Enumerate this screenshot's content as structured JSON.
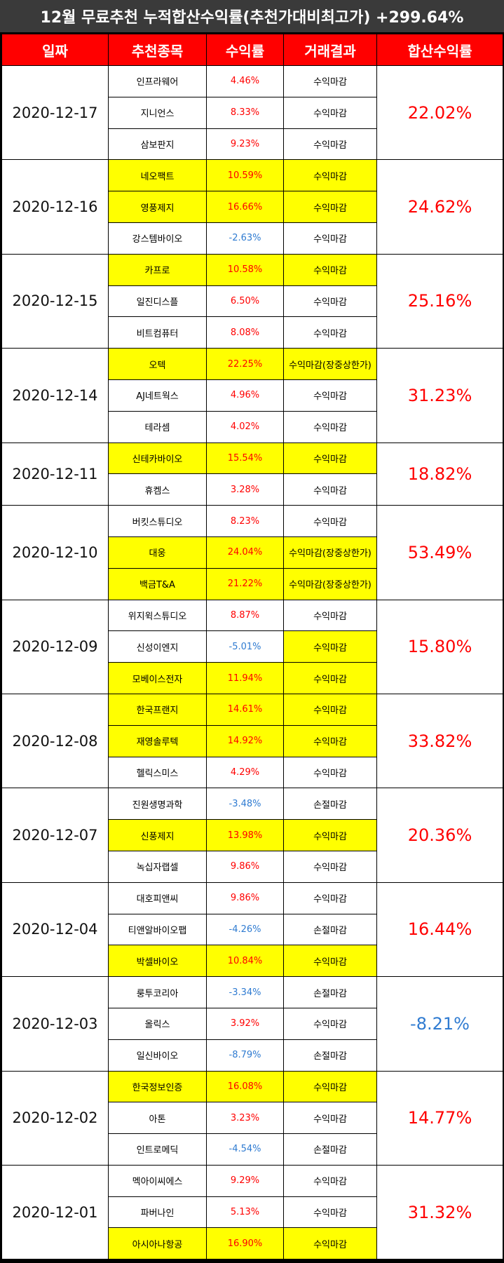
{
  "title": "12월 무료추천 누적합산수익률(추천가대비최고가) +299.64%",
  "headers": [
    "일짜",
    "추천종목",
    "수익률",
    "거래결과",
    "합산수익률"
  ],
  "colors": {
    "header_bg": "#ff0000",
    "title_bg": "#3a3a3a",
    "highlight": "#ffff00",
    "positive": "#ff0000",
    "negative": "#2f7bd1"
  },
  "groups": [
    {
      "date": "2020-12-17",
      "total": "22.02%",
      "total_sign": "pos",
      "rows": [
        {
          "name": "인프라웨어",
          "ret": "4.46%",
          "sign": "pos",
          "result": "수익마감",
          "hl": false,
          "limit": false
        },
        {
          "name": "지니언스",
          "ret": "8.33%",
          "sign": "pos",
          "result": "수익마감",
          "hl": false,
          "limit": false
        },
        {
          "name": "삼보판지",
          "ret": "9.23%",
          "sign": "pos",
          "result": "수익마감",
          "hl": false,
          "limit": false
        }
      ]
    },
    {
      "date": "2020-12-16",
      "total": "24.62%",
      "total_sign": "pos",
      "rows": [
        {
          "name": "네오팩트",
          "ret": "10.59%",
          "sign": "pos",
          "result": "수익마감",
          "hl": true,
          "limit": false
        },
        {
          "name": "영풍제지",
          "ret": "16.66%",
          "sign": "pos",
          "result": "수익마감",
          "hl": true,
          "limit": false
        },
        {
          "name": "강스템바이오",
          "ret": "-2.63%",
          "sign": "neg",
          "result": "수익마감",
          "hl": false,
          "limit": false
        }
      ]
    },
    {
      "date": "2020-12-15",
      "total": "25.16%",
      "total_sign": "pos",
      "rows": [
        {
          "name": "카프로",
          "ret": "10.58%",
          "sign": "pos",
          "result": "수익마감",
          "hl": true,
          "limit": false
        },
        {
          "name": "일진디스플",
          "ret": "6.50%",
          "sign": "pos",
          "result": "수익마감",
          "hl": false,
          "limit": false
        },
        {
          "name": "비트컴퓨터",
          "ret": "8.08%",
          "sign": "pos",
          "result": "수익마감",
          "hl": false,
          "limit": false
        }
      ]
    },
    {
      "date": "2020-12-14",
      "total": "31.23%",
      "total_sign": "pos",
      "rows": [
        {
          "name": "오텍",
          "ret": "22.25%",
          "sign": "pos",
          "result": "수익마감(장중상한가)",
          "hl": true,
          "limit": true
        },
        {
          "name": "AJ네트웍스",
          "ret": "4.96%",
          "sign": "pos",
          "result": "수익마감",
          "hl": false,
          "limit": false
        },
        {
          "name": "테라셈",
          "ret": "4.02%",
          "sign": "pos",
          "result": "수익마감",
          "hl": false,
          "limit": false
        }
      ]
    },
    {
      "date": "2020-12-11",
      "total": "18.82%",
      "total_sign": "pos",
      "rows": [
        {
          "name": "신테카바이오",
          "ret": "15.54%",
          "sign": "pos",
          "result": "수익마감",
          "hl": true,
          "limit": false
        },
        {
          "name": "휴켐스",
          "ret": "3.28%",
          "sign": "pos",
          "result": "수익마감",
          "hl": false,
          "limit": false
        }
      ]
    },
    {
      "date": "2020-12-10",
      "total": "53.49%",
      "total_sign": "pos",
      "rows": [
        {
          "name": "버킷스튜디오",
          "ret": "8.23%",
          "sign": "pos",
          "result": "수익마감",
          "hl": false,
          "limit": false
        },
        {
          "name": "대웅",
          "ret": "24.04%",
          "sign": "pos",
          "result": "수익마감(장중상한가)",
          "hl": true,
          "limit": true
        },
        {
          "name": "백금T&A",
          "ret": "21.22%",
          "sign": "pos",
          "result": "수익마감(장중상한가)",
          "hl": true,
          "limit": true
        }
      ]
    },
    {
      "date": "2020-12-09",
      "total": "15.80%",
      "total_sign": "pos",
      "rows": [
        {
          "name": "위지윅스튜디오",
          "ret": "8.87%",
          "sign": "pos",
          "result": "수익마감",
          "hl": false,
          "limit": false
        },
        {
          "name": "신성이엔지",
          "ret": "-5.01%",
          "sign": "neg",
          "result": "수익마감",
          "hl": false,
          "res_hl": true,
          "limit": false
        },
        {
          "name": "모베이스전자",
          "ret": "11.94%",
          "sign": "pos",
          "result": "수익마감",
          "hl": true,
          "limit": false
        }
      ]
    },
    {
      "date": "2020-12-08",
      "total": "33.82%",
      "total_sign": "pos",
      "rows": [
        {
          "name": "한국프랜지",
          "ret": "14.61%",
          "sign": "pos",
          "result": "수익마감",
          "hl": true,
          "limit": false
        },
        {
          "name": "재영솔루텍",
          "ret": "14.92%",
          "sign": "pos",
          "result": "수익마감",
          "hl": true,
          "limit": false
        },
        {
          "name": "헬릭스미스",
          "ret": "4.29%",
          "sign": "pos",
          "result": "수익마감",
          "hl": false,
          "limit": false
        }
      ]
    },
    {
      "date": "2020-12-07",
      "total": "20.36%",
      "total_sign": "pos",
      "rows": [
        {
          "name": "진원생명과학",
          "ret": "-3.48%",
          "sign": "neg",
          "result": "손절마감",
          "hl": false,
          "limit": false
        },
        {
          "name": "신풍제지",
          "ret": "13.98%",
          "sign": "pos",
          "result": "수익마감",
          "hl": true,
          "limit": false
        },
        {
          "name": "녹십자랩셀",
          "ret": "9.86%",
          "sign": "pos",
          "result": "수익마감",
          "hl": false,
          "limit": false
        }
      ]
    },
    {
      "date": "2020-12-04",
      "total": "16.44%",
      "total_sign": "pos",
      "rows": [
        {
          "name": "대호피앤씨",
          "ret": "9.86%",
          "sign": "pos",
          "result": "수익마감",
          "hl": false,
          "limit": false
        },
        {
          "name": "티앤알바이오팹",
          "ret": "-4.26%",
          "sign": "neg",
          "result": "손절마감",
          "hl": false,
          "limit": false
        },
        {
          "name": "박셀바이오",
          "ret": "10.84%",
          "sign": "pos",
          "result": "수익마감",
          "hl": true,
          "limit": false
        }
      ]
    },
    {
      "date": "2020-12-03",
      "total": "-8.21%",
      "total_sign": "neg",
      "rows": [
        {
          "name": "룽투코리아",
          "ret": "-3.34%",
          "sign": "neg",
          "result": "손절마감",
          "hl": false,
          "limit": false
        },
        {
          "name": "올릭스",
          "ret": "3.92%",
          "sign": "pos",
          "result": "수익마감",
          "hl": false,
          "limit": false
        },
        {
          "name": "일신바이오",
          "ret": "-8.79%",
          "sign": "neg",
          "result": "손절마감",
          "hl": false,
          "limit": false
        }
      ]
    },
    {
      "date": "2020-12-02",
      "total": "14.77%",
      "total_sign": "pos",
      "rows": [
        {
          "name": "한국정보인증",
          "ret": "16.08%",
          "sign": "pos",
          "result": "수익마감",
          "hl": true,
          "limit": false
        },
        {
          "name": "아톤",
          "ret": "3.23%",
          "sign": "pos",
          "result": "수익마감",
          "hl": false,
          "limit": false
        },
        {
          "name": "인트로메딕",
          "ret": "-4.54%",
          "sign": "neg",
          "result": "손절마감",
          "hl": false,
          "limit": false
        }
      ]
    },
    {
      "date": "2020-12-01",
      "total": "31.32%",
      "total_sign": "pos",
      "rows": [
        {
          "name": "멕아이씨에스",
          "ret": "9.29%",
          "sign": "pos",
          "result": "수익마감",
          "hl": false,
          "limit": false
        },
        {
          "name": "파버나인",
          "ret": "5.13%",
          "sign": "pos",
          "result": "수익마감",
          "hl": false,
          "limit": false
        },
        {
          "name": "아시아나항공",
          "ret": "16.90%",
          "sign": "pos",
          "result": "수익마감",
          "hl": true,
          "limit": false
        }
      ]
    }
  ]
}
